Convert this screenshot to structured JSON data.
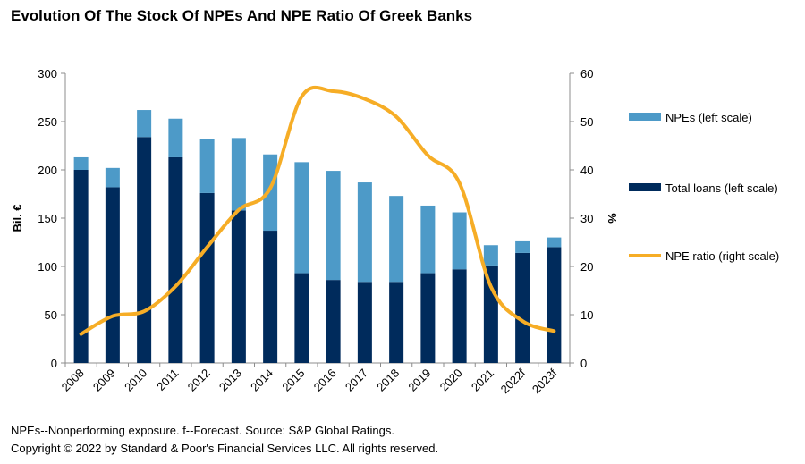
{
  "title": "Evolution Of The Stock Of NPEs And NPE Ratio Of Greek Banks",
  "footnote": "NPEs--Nonperforming exposure. f--Forecast. Source: S&P Global Ratings.",
  "copyright": "Copyright © 2022 by Standard & Poor's Financial Services LLC. All rights reserved.",
  "colors": {
    "npes": "#4d9ac8",
    "loans": "#002b5c",
    "ratio": "#f6ad26",
    "axis": "#8c8c8c"
  },
  "chart_data": {
    "type": "bar",
    "title": "Evolution Of The Stock Of NPEs And NPE Ratio Of Greek Banks",
    "categories": [
      "2008",
      "2009",
      "2010",
      "2011",
      "2012",
      "2013",
      "2014",
      "2015",
      "2016",
      "2017",
      "2018",
      "2019",
      "2020",
      "2021",
      "2022f",
      "2023f"
    ],
    "series": [
      {
        "name": "Total loans (left scale)",
        "type": "bar",
        "axis": "left",
        "values": [
          200,
          182,
          234,
          213,
          176,
          158,
          137,
          93,
          86,
          84,
          84,
          93,
          97,
          101,
          114,
          120
        ]
      },
      {
        "name": "NPEs (left scale)",
        "type": "bar",
        "axis": "left",
        "stacked_on": "Total loans (left scale)",
        "values": [
          13,
          20,
          28,
          40,
          56,
          75,
          79,
          115,
          113,
          103,
          89,
          70,
          59,
          21,
          12,
          10
        ]
      },
      {
        "name": "NPE ratio (right scale)",
        "type": "line",
        "axis": "right",
        "values": [
          6.0,
          9.7,
          10.7,
          15.9,
          24.0,
          31.7,
          36.2,
          55.2,
          56.3,
          54.7,
          51.0,
          43.0,
          37.3,
          15.8,
          8.7,
          6.6
        ]
      }
    ],
    "ylabel": "Bil. €",
    "ylim": [
      0,
      300
    ],
    "yticks": [
      "0",
      "50",
      "100",
      "150",
      "200",
      "250",
      "300"
    ],
    "y2label": "%",
    "y2lim": [
      0,
      60
    ],
    "y2ticks": [
      "0",
      "10",
      "20",
      "30",
      "40",
      "50",
      "60"
    ],
    "legend": [
      {
        "label": "NPEs (left scale)",
        "kind": "bar",
        "series": "NPEs (left scale)"
      },
      {
        "label": "Total loans (left scale)",
        "kind": "bar",
        "series": "Total loans (left scale)"
      },
      {
        "label": "NPE ratio (right scale)",
        "kind": "line",
        "series": "NPE ratio (right scale)"
      }
    ],
    "legend_position": "right",
    "grid": false
  }
}
